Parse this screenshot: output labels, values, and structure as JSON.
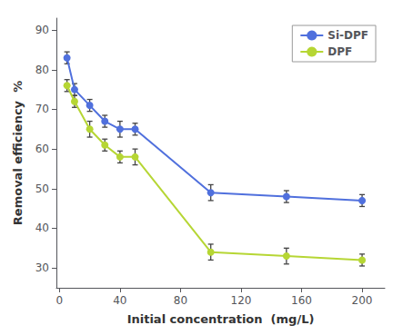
{
  "chart_data": {
    "type": "line",
    "xlabel": "Initial concentration  (mg/L)",
    "ylabel": "Removal efficiency  %",
    "x": [
      5,
      10,
      20,
      30,
      40,
      50,
      100,
      150,
      200
    ],
    "series": [
      {
        "name": "Si-DPF",
        "values": [
          83,
          75,
          71,
          67,
          65,
          65,
          49,
          48,
          47
        ],
        "yerr": [
          1.5,
          1.5,
          1.5,
          1.5,
          2.0,
          1.5,
          2.0,
          1.5,
          1.5
        ],
        "marker": "circle"
      },
      {
        "name": "DPF",
        "values": [
          76,
          72,
          65,
          61,
          58,
          58,
          34,
          33,
          32
        ],
        "yerr": [
          1.5,
          1.5,
          2.0,
          1.5,
          1.5,
          2.0,
          2.0,
          2.0,
          1.5
        ],
        "marker": "circle"
      }
    ],
    "xlim": [
      -2,
      215
    ],
    "ylim": [
      25,
      93
    ],
    "xticks": [
      0,
      40,
      80,
      120,
      160,
      200
    ],
    "yticks": [
      30,
      40,
      50,
      60,
      70,
      80,
      90
    ],
    "grid": false,
    "legend": "upper right"
  }
}
